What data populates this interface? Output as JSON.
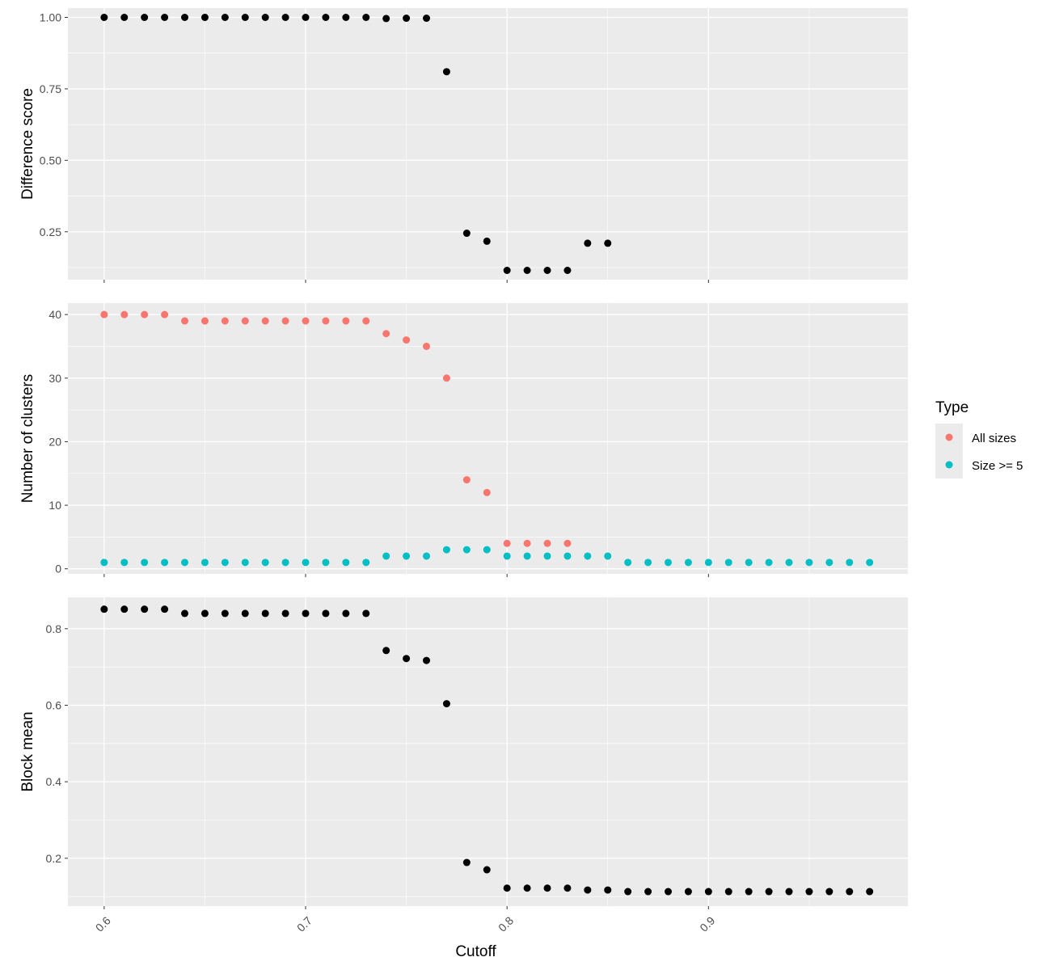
{
  "chart_data": [
    {
      "type": "scatter",
      "panel": "top",
      "xlabel": "",
      "ylabel": "Difference score",
      "xlim": [
        0.582,
        0.999
      ],
      "ylim": [
        0.0825,
        1.0325
      ],
      "y_ticks": [
        0.25,
        0.5,
        0.75,
        1.0
      ],
      "y_tick_labels": [
        "0.25",
        "0.50",
        "0.75",
        "1.00"
      ],
      "x_ticks": [
        0.6,
        0.7,
        0.8,
        0.9
      ],
      "grid": true,
      "series": [
        {
          "color": "#000000",
          "x": [
            0.6,
            0.61,
            0.62,
            0.63,
            0.64,
            0.65,
            0.66,
            0.67,
            0.68,
            0.69,
            0.7,
            0.71,
            0.72,
            0.73,
            0.74,
            0.75,
            0.76,
            0.77,
            0.78,
            0.79,
            0.8,
            0.81,
            0.82,
            0.83,
            0.84,
            0.85
          ],
          "y": [
            1.0,
            1.0,
            1.0,
            1.0,
            1.0,
            1.0,
            1.0,
            1.0,
            1.0,
            1.0,
            1.0,
            1.0,
            1.0,
            1.0,
            0.996,
            0.997,
            0.997,
            0.81,
            0.245,
            0.217,
            0.115,
            0.115,
            0.115,
            0.115,
            0.21,
            0.21
          ]
        }
      ]
    },
    {
      "type": "scatter",
      "panel": "middle",
      "xlabel": "",
      "ylabel": "Number of clusters",
      "xlim": [
        0.582,
        0.999
      ],
      "ylim": [
        -0.8,
        41.8
      ],
      "y_ticks": [
        0,
        10,
        20,
        30,
        40
      ],
      "y_tick_labels": [
        "0",
        "10",
        "20",
        "30",
        "40"
      ],
      "x_ticks": [
        0.6,
        0.7,
        0.8,
        0.9
      ],
      "grid": true,
      "series": [
        {
          "name": "All sizes",
          "color": "#F8766D",
          "x": [
            0.6,
            0.61,
            0.62,
            0.63,
            0.64,
            0.65,
            0.66,
            0.67,
            0.68,
            0.69,
            0.7,
            0.71,
            0.72,
            0.73,
            0.74,
            0.75,
            0.76,
            0.77,
            0.78,
            0.79,
            0.8,
            0.81,
            0.82,
            0.83
          ],
          "y": [
            40,
            40,
            40,
            40,
            39,
            39,
            39,
            39,
            39,
            39,
            39,
            39,
            39,
            39,
            37,
            36,
            35,
            30,
            14,
            12,
            4,
            4,
            4,
            4
          ]
        },
        {
          "name": "Size >= 5",
          "color": "#00BFC4",
          "x": [
            0.6,
            0.61,
            0.62,
            0.63,
            0.64,
            0.65,
            0.66,
            0.67,
            0.68,
            0.69,
            0.7,
            0.71,
            0.72,
            0.73,
            0.74,
            0.75,
            0.76,
            0.77,
            0.78,
            0.79,
            0.8,
            0.81,
            0.82,
            0.83,
            0.84,
            0.85,
            0.86,
            0.87,
            0.88,
            0.89,
            0.9,
            0.91,
            0.92,
            0.93,
            0.94,
            0.95,
            0.96,
            0.97,
            0.98
          ],
          "y": [
            1,
            1,
            1,
            1,
            1,
            1,
            1,
            1,
            1,
            1,
            1,
            1,
            1,
            1,
            2,
            2,
            2,
            3,
            3,
            3,
            2,
            2,
            2,
            2,
            2,
            2,
            1,
            1,
            1,
            1,
            1,
            1,
            1,
            1,
            1,
            1,
            1,
            1,
            1
          ]
        }
      ]
    },
    {
      "type": "scatter",
      "panel": "bottom",
      "xlabel": "Cutoff",
      "ylabel": "Block mean",
      "xlim": [
        0.582,
        0.999
      ],
      "ylim": [
        0.075,
        0.882
      ],
      "y_ticks": [
        0.2,
        0.4,
        0.6,
        0.8
      ],
      "y_tick_labels": [
        "0.2",
        "0.4",
        "0.6",
        "0.8"
      ],
      "x_ticks": [
        0.6,
        0.7,
        0.8,
        0.9
      ],
      "x_tick_labels": [
        "0.6",
        "0.7",
        "0.8",
        "0.9"
      ],
      "grid": true,
      "series": [
        {
          "color": "#000000",
          "x": [
            0.6,
            0.61,
            0.62,
            0.63,
            0.64,
            0.65,
            0.66,
            0.67,
            0.68,
            0.69,
            0.7,
            0.71,
            0.72,
            0.73,
            0.74,
            0.75,
            0.76,
            0.77,
            0.78,
            0.79,
            0.8,
            0.81,
            0.82,
            0.83,
            0.84,
            0.85,
            0.86,
            0.87,
            0.88,
            0.89,
            0.9,
            0.91,
            0.92,
            0.93,
            0.94,
            0.95,
            0.96,
            0.97,
            0.98
          ],
          "y": [
            0.851,
            0.851,
            0.851,
            0.851,
            0.84,
            0.84,
            0.84,
            0.84,
            0.84,
            0.84,
            0.84,
            0.84,
            0.84,
            0.84,
            0.743,
            0.722,
            0.717,
            0.604,
            0.189,
            0.17,
            0.122,
            0.122,
            0.122,
            0.122,
            0.117,
            0.117,
            0.113,
            0.113,
            0.113,
            0.113,
            0.113,
            0.113,
            0.113,
            0.113,
            0.113,
            0.113,
            0.113,
            0.113,
            0.113
          ]
        }
      ]
    }
  ],
  "legend": {
    "title": "Type",
    "placement": "right",
    "items": [
      {
        "label": "All sizes",
        "color": "#F8766D"
      },
      {
        "label": "Size >= 5",
        "color": "#00BFC4"
      }
    ]
  },
  "colors": {
    "panel_bg": "#EBEBEB",
    "grid_major": "#FFFFFF",
    "tick_text": "#4D4D4D",
    "axis_title": "#000000"
  }
}
